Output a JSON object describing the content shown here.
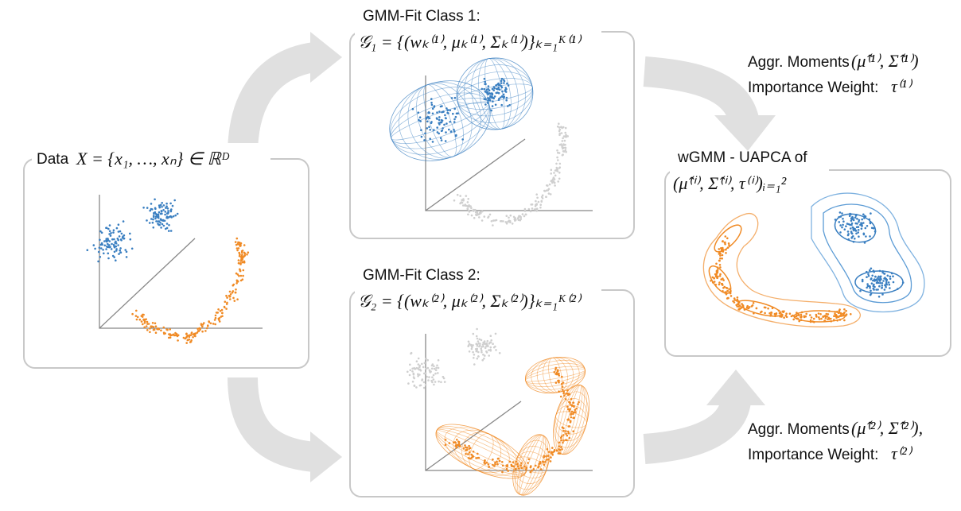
{
  "panels": {
    "data": {
      "label": "Data",
      "formula": "X = {x₁, …, xₙ} ∈ ℝᴰ"
    },
    "class1": {
      "title": "GMM-Fit Class 1:",
      "formula": "𝒢₁ = {(wₖ⁽¹⁾, μₖ⁽¹⁾, Σₖ⁽¹⁾)}ₖ₌₁ᴷ⁽¹⁾"
    },
    "class2": {
      "title": "GMM-Fit Class 2:",
      "formula": "𝒢₂ = {(wₖ⁽²⁾, μₖ⁽²⁾, Σₖ⁽²⁾)}ₖ₌₁ᴷ⁽²⁾"
    },
    "result": {
      "title": "wGMM - UAPCA of",
      "formula": "(μ̂⁽ⁱ⁾, Σ̂⁽ⁱ⁾, τ⁽ⁱ⁾)ᵢ₌₁²"
    }
  },
  "annotations": [
    {
      "moments_label": "Aggr. Moments",
      "moments": "(μ̂⁽¹⁾, Σ̂⁽¹⁾)",
      "weight_label": "Importance Weight:",
      "weight": "τ⁽¹⁾"
    },
    {
      "moments_label": "Aggr. Moments",
      "moments": "(μ̂⁽²⁾, Σ̂⁽²⁾),",
      "weight_label": "Importance Weight:",
      "weight": "τ⁽²⁾"
    }
  ]
}
